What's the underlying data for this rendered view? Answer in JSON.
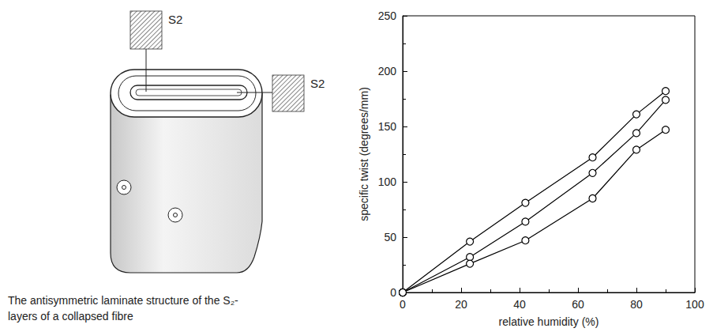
{
  "chart_data": {
    "type": "line",
    "x_label": "relative humidity (%)",
    "y_label": "specific twist (degrees/mm)",
    "x": [
      0,
      23,
      42,
      65,
      80,
      90
    ],
    "series": [
      {
        "color": "#000000",
        "values": [
          0,
          46,
          81,
          122,
          161,
          182
        ]
      },
      {
        "color": "#000000",
        "values": [
          0,
          32,
          64,
          108,
          144,
          174
        ]
      },
      {
        "color": "#000000",
        "values": [
          0,
          26,
          47,
          85,
          129,
          147
        ]
      }
    ],
    "xlim": [
      0,
      100
    ],
    "xticks": [
      0,
      20,
      40,
      60,
      80,
      100
    ],
    "ylim": [
      0,
      250
    ],
    "yticks": [
      0,
      50,
      100,
      150,
      200,
      250
    ],
    "grid": false,
    "marker": "circle",
    "line_style": "solid"
  },
  "diagram": {
    "labels": [
      "S2",
      "S2"
    ],
    "caption": "The antisymmetric laminate structure of the S₂-layers of a collapsed fibre"
  }
}
